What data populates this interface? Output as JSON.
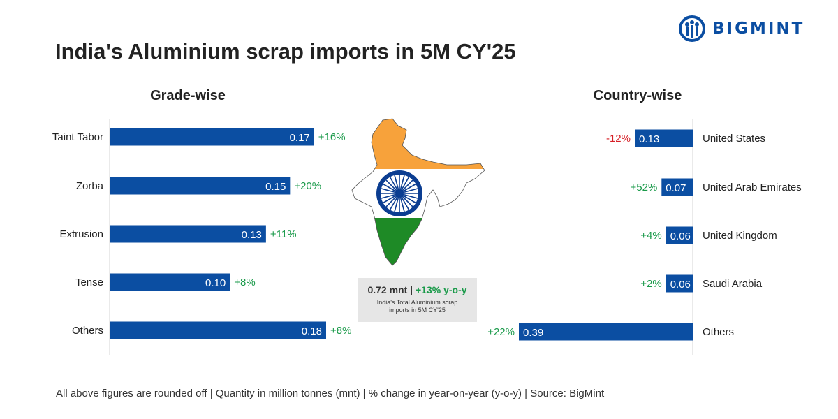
{
  "brand": {
    "name": "BIGMINT",
    "color": "#0b4ea2",
    "logo_icon": "people-circle-icon"
  },
  "title": "India's Aluminium scrap imports in 5M CY'25",
  "chart_data": [
    {
      "type": "bar",
      "orientation": "horizontal",
      "title": "Grade-wise",
      "categories": [
        "Taint Tabor",
        "Zorba",
        "Extrusion",
        "Tense",
        "Others"
      ],
      "values": [
        0.17,
        0.15,
        0.13,
        0.1,
        0.18
      ],
      "value_labels": [
        "0.17",
        "0.15",
        "0.13",
        "0.10",
        "0.18"
      ],
      "change_labels": [
        "+16%",
        "+20%",
        "+11%",
        "+8%",
        "+8%"
      ],
      "change_values": [
        16,
        20,
        11,
        8,
        8
      ],
      "unit": "mnt",
      "xlim": [
        0,
        0.18
      ],
      "bar_color": "#0b4ea2",
      "bar_direction": "left-to-right",
      "grid": false
    },
    {
      "type": "bar",
      "orientation": "horizontal",
      "title": "Country-wise",
      "categories": [
        "United States",
        "United Arab Emirates",
        "United Kingdom",
        "Saudi Arabia",
        "Others"
      ],
      "values": [
        0.13,
        0.07,
        0.06,
        0.06,
        0.39
      ],
      "value_labels": [
        "0.13",
        "0.07",
        "0.06",
        "0.06",
        "0.39"
      ],
      "change_labels": [
        "-12%",
        "+52%",
        "+4%",
        "+2%",
        "+22%"
      ],
      "change_values": [
        -12,
        52,
        4,
        2,
        22
      ],
      "unit": "mnt",
      "xlim": [
        0,
        0.39
      ],
      "bar_color": "#0b4ea2",
      "bar_direction": "right-to-left",
      "grid": false
    }
  ],
  "total": {
    "value": "0.72 mnt",
    "separator": "|",
    "change": "+13% y-o-y",
    "caption": "India's Total Aluminium scrap imports in 5M CY'25"
  },
  "colors": {
    "positive": "#1a9a4a",
    "negative": "#d61f26",
    "saffron": "#f7a23b",
    "green": "#1e8a26",
    "chakra": "#0b3d91"
  },
  "map_icon": "india-flag-map-icon",
  "footnote": "All above figures are rounded off | Quantity in million tonnes (mnt) | % change in year-on-year (y-o-y) | Source: BigMint"
}
